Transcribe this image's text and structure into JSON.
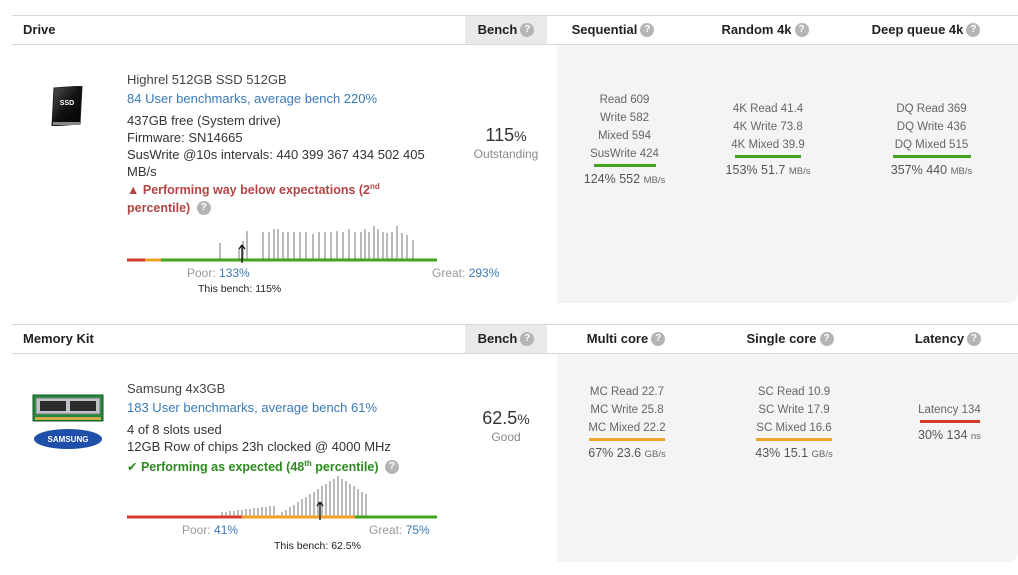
{
  "drive": {
    "header": {
      "title": "Drive",
      "bench": "Bench",
      "col1": "Sequential",
      "col2": "Random 4k",
      "col3": "Deep queue 4k"
    },
    "name": "Highrel 512GB SSD 512GB",
    "benchmarks_link": "84 User benchmarks, average bench 220%",
    "free": "437GB free (System drive)",
    "firmware": "Firmware: SN14665",
    "suswrite": "SusWrite @10s intervals: 440 399 367 434 502 405 MB/s",
    "warning_pre": "Performing way below expectations (2",
    "warning_sup": "nd",
    "warning_post": " percentile)",
    "bench_score": "115",
    "bench_pct": "%",
    "bench_label": "Outstanding",
    "seq": {
      "l1": "Read 609",
      "l2": "Write 582",
      "l3": "Mixed 594",
      "l4": "SusWrite 424",
      "sum": "124% 552",
      "unit": "MB/s"
    },
    "rnd": {
      "l1": "4K Read 41.4",
      "l2": "4K Write 73.8",
      "l3": "4K Mixed 39.9",
      "sum": "153% 51.7",
      "unit": "MB/s"
    },
    "dq": {
      "l1": "DQ Read 369",
      "l2": "DQ Write 436",
      "l3": "DQ Mixed 515",
      "sum": "357% 440",
      "unit": "MB/s"
    },
    "poor_label": "Poor:",
    "poor_value": "133%",
    "great_label": "Great:",
    "great_value": "293%",
    "this_bench": "This bench: 115%",
    "image_label": "SSD",
    "colors": {
      "seq_bar": "#44a31b",
      "rnd_bar": "#44a31b",
      "dq_bar": "#44a31b"
    }
  },
  "memory": {
    "header": {
      "title": "Memory Kit",
      "bench": "Bench",
      "col1": "Multi core",
      "col2": "Single core",
      "col3": "Latency"
    },
    "name": "Samsung 4x3GB",
    "benchmarks_link": "183 User benchmarks, average bench 61%",
    "slots": "4 of 8 slots used",
    "chips": "12GB Row of chips 23h clocked @ 4000 MHz",
    "good_pre": "Performing as expected (48",
    "good_sup": "th",
    "good_post": " percentile)",
    "bench_score": "62.5",
    "bench_pct": "%",
    "bench_label": "Good",
    "mc": {
      "l1": "MC Read 22.7",
      "l2": "MC Write 25.8",
      "l3": "MC Mixed 22.2",
      "sum": "67% 23.6",
      "unit": "GB/s"
    },
    "sc": {
      "l1": "SC Read 10.9",
      "l2": "SC Write 17.9",
      "l3": "SC Mixed 16.6",
      "sum": "43% 15.1",
      "unit": "GB/s"
    },
    "lat": {
      "l1": "Latency 134",
      "sum": "30% 134",
      "unit": "ns"
    },
    "poor_label": "Poor:",
    "poor_value": "41%",
    "great_label": "Great:",
    "great_value": "75%",
    "this_bench": "This bench: 62.5%",
    "brand_label": "SAMSUNG",
    "colors": {
      "mc_bar": "#f0a12a",
      "sc_bar": "#f0a12a",
      "lat_bar": "#d63a2f"
    }
  }
}
